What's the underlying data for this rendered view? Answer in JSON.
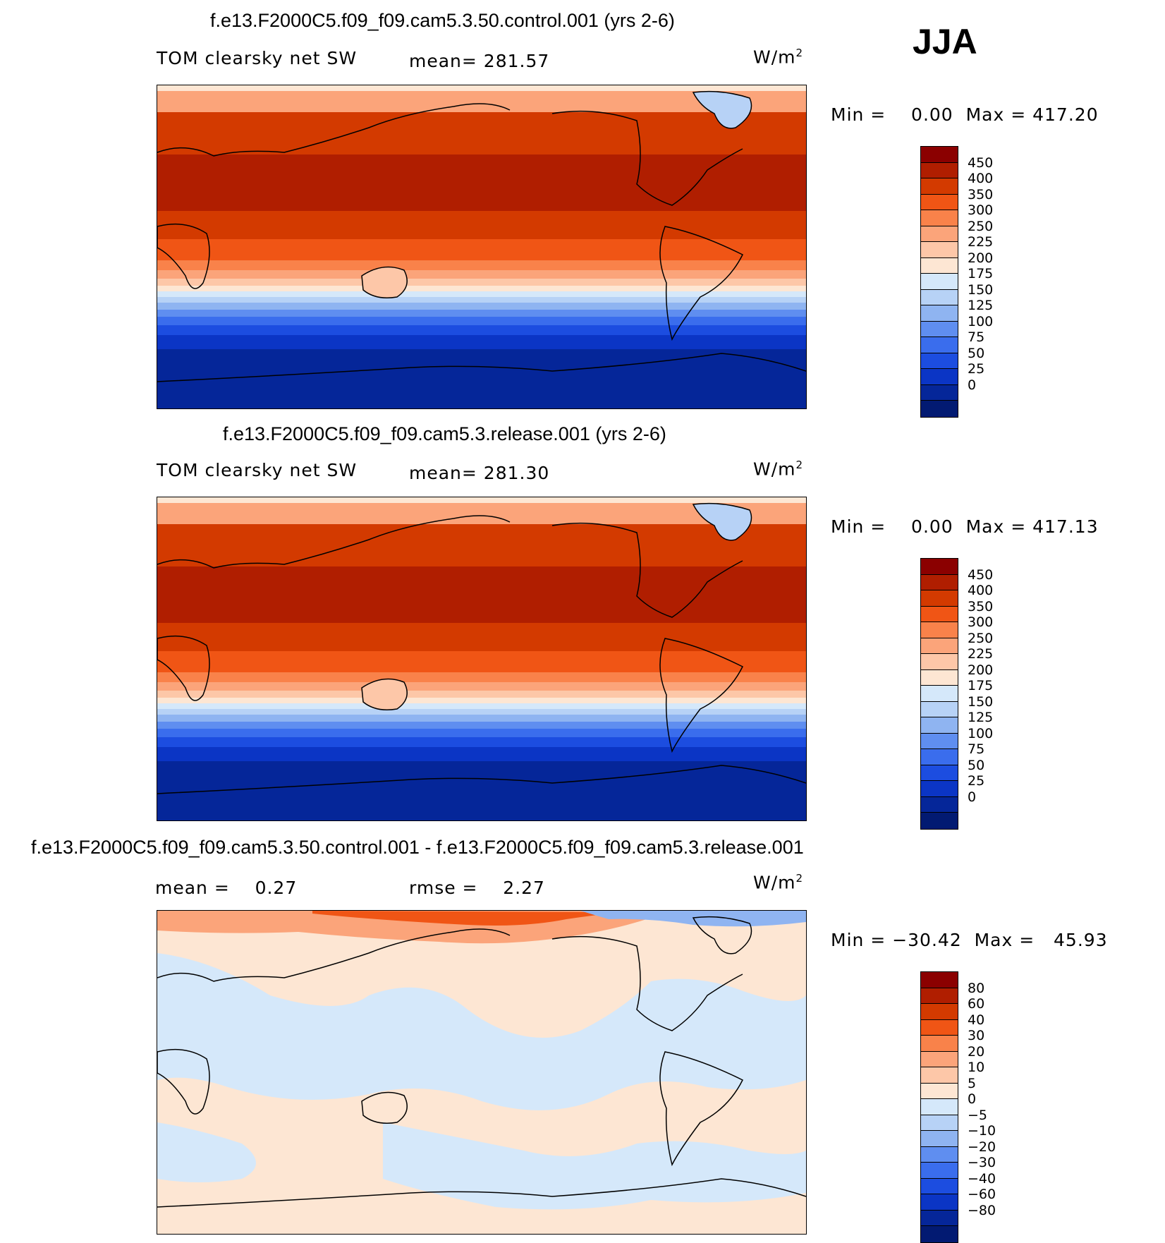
{
  "season": "JJA",
  "panels": [
    {
      "title": "f.e13.F2000C5.f09_f09.cam5.3.50.control.001 (yrs 2-6)",
      "variable": "TOM clearsky net SW",
      "stat_text": "mean=  281.57",
      "units": "W/m",
      "units_exp": "2",
      "minmax": "Min =    0.00  Max = 417.20",
      "colorbar": {
        "colors": [
          "#8b0000",
          "#b01e00",
          "#d33a00",
          "#f05515",
          "#f9824a",
          "#fba47a",
          "#fdc7a8",
          "#fde6d3",
          "#d5e8fa",
          "#b7d2f6",
          "#8fb4f1",
          "#5f8ef0",
          "#3a6ded",
          "#1c4de0",
          "#0b35c5",
          "#052699",
          "#021a72"
        ],
        "tick_labels": [
          "450",
          "400",
          "350",
          "300",
          "250",
          "225",
          "200",
          "175",
          "150",
          "125",
          "100",
          "75",
          "50",
          "25",
          "0"
        ]
      }
    },
    {
      "title": "f.e13.F2000C5.f09_f09.cam5.3.release.001 (yrs 2-6)",
      "variable": "TOM clearsky net SW",
      "stat_text": "mean=  281.30",
      "units": "W/m",
      "units_exp": "2",
      "minmax": "Min =    0.00  Max = 417.13",
      "colorbar": {
        "colors": [
          "#8b0000",
          "#b01e00",
          "#d33a00",
          "#f05515",
          "#f9824a",
          "#fba47a",
          "#fdc7a8",
          "#fde6d3",
          "#d5e8fa",
          "#b7d2f6",
          "#8fb4f1",
          "#5f8ef0",
          "#3a6ded",
          "#1c4de0",
          "#0b35c5",
          "#052699",
          "#021a72"
        ],
        "tick_labels": [
          "450",
          "400",
          "350",
          "300",
          "250",
          "225",
          "200",
          "175",
          "150",
          "125",
          "100",
          "75",
          "50",
          "25",
          "0"
        ]
      }
    },
    {
      "title": "f.e13.F2000C5.f09_f09.cam5.3.50.control.001 - f.e13.F2000C5.f09_f09.cam5.3.release.001",
      "mean_text": "mean =    0.27",
      "rmse_text": "rmse =    2.27",
      "units": "W/m",
      "units_exp": "2",
      "minmax": "Min = −30.42  Max =   45.93",
      "colorbar": {
        "colors": [
          "#8b0000",
          "#b01e00",
          "#d33a00",
          "#f05515",
          "#f9824a",
          "#fba47a",
          "#fdc7a8",
          "#fde6d3",
          "#d5e8fa",
          "#b7d2f6",
          "#8fb4f1",
          "#5f8ef0",
          "#3a6ded",
          "#1c4de0",
          "#0b35c5",
          "#052699",
          "#021a72"
        ],
        "tick_labels": [
          "80",
          "60",
          "40",
          "30",
          "20",
          "10",
          "5",
          "0",
          "−5",
          "−10",
          "−20",
          "−30",
          "−40",
          "−60",
          "−80"
        ]
      }
    }
  ]
}
